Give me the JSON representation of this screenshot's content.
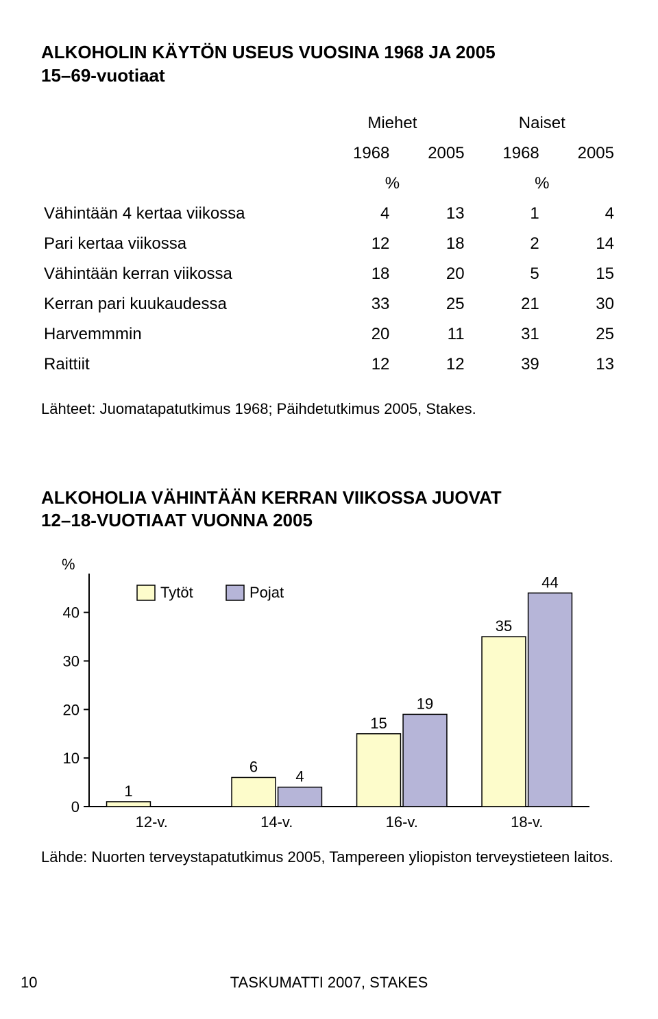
{
  "section1": {
    "title_line1": "ALKOHOLIN KÄYTÖN USEUS VUOSINA 1968 JA 2005",
    "title_line2": "15–69-vuotiaat",
    "col_group1": "Miehet",
    "col_group2": "Naiset",
    "col_1968": "1968",
    "col_2005": "2005",
    "pct": "%",
    "rows": [
      {
        "label": "Vähintään 4 kertaa viikossa",
        "m68": "4",
        "m05": "13",
        "n68": "1",
        "n05": "4"
      },
      {
        "label": "Pari kertaa viikossa",
        "m68": "12",
        "m05": "18",
        "n68": "2",
        "n05": "14"
      },
      {
        "label": "Vähintään kerran viikossa",
        "m68": "18",
        "m05": "20",
        "n68": "5",
        "n05": "15"
      },
      {
        "label": "Kerran pari kuukaudessa",
        "m68": "33",
        "m05": "25",
        "n68": "21",
        "n05": "30"
      },
      {
        "label": "Harvemmmin",
        "m68": "20",
        "m05": "11",
        "n68": "31",
        "n05": "25"
      },
      {
        "label": "Raittiit",
        "m68": "12",
        "m05": "12",
        "n68": "39",
        "n05": "13"
      }
    ],
    "source": "Lähteet: Juomatapatutkimus 1968; Päihdetutkimus 2005, Stakes."
  },
  "section2": {
    "title_line1": "ALKOHOLIA VÄHINTÄÄN KERRAN VIIKOSSA JUOVAT",
    "title_line2": "12–18-VUOTIAAT VUONNA 2005",
    "chart": {
      "type": "bar",
      "y_label": "%",
      "y_ticks": [
        0,
        10,
        20,
        30,
        40
      ],
      "ylim": [
        0,
        48
      ],
      "categories": [
        "12-v.",
        "14-v.",
        "16-v.",
        "18-v."
      ],
      "series": [
        {
          "name": "Tytöt",
          "color": "#fdfccb",
          "border": "#000000",
          "values": [
            1,
            6,
            15,
            35
          ]
        },
        {
          "name": "Pojat",
          "color": "#b6b5d8",
          "border": "#000000",
          "values": [
            null,
            4,
            19,
            44
          ]
        }
      ],
      "legend": [
        "Tytöt",
        "Pojat"
      ],
      "axis_color": "#000000",
      "tick_color": "#000000",
      "background": "#ffffff",
      "label_fontsize": 22,
      "bar_width": 0.35,
      "bar_gap": 0.02
    },
    "source": "Lähde: Nuorten terveystapatutkimus 2005, Tampereen yliopiston terveystieteen laitos."
  },
  "footer": "TASKUMATTI 2007, STAKES",
  "page_num": "10"
}
